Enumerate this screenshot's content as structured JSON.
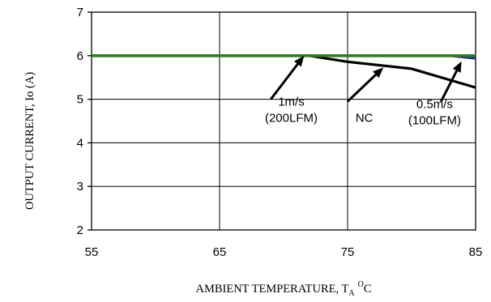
{
  "chart_data": {
    "type": "line",
    "title": "",
    "xlabel": "AMBIENT TEMPERATURE, T",
    "xlabel_sub": "A",
    "xlabel_sup": "O",
    "xlabel_tail": "C",
    "ylabel": "OUTPUT CURRENT, Io  (A)",
    "xlim": [
      55,
      85
    ],
    "ylim": [
      2,
      7
    ],
    "xticks": [
      55,
      65,
      75,
      85
    ],
    "yticks": [
      2,
      3,
      4,
      5,
      6,
      7
    ],
    "grid": true,
    "series": [
      {
        "name": "NC",
        "color": "#000000",
        "x": [
          55,
          72,
          75,
          80,
          85
        ],
        "y": [
          6,
          6,
          5.86,
          5.7,
          5.27
        ]
      },
      {
        "name": "0.5m/s (100LFM)",
        "color": "#1f2a8c",
        "x": [
          55,
          83,
          85
        ],
        "y": [
          6,
          6,
          5.94
        ]
      },
      {
        "name": "1m/s (200LFM)",
        "color": "#2e7d1f",
        "x": [
          55,
          85
        ],
        "y": [
          6,
          6
        ]
      }
    ],
    "annotations": [
      {
        "lines": [
          "1m/s",
          "(200LFM)"
        ],
        "text_x": 70.6,
        "text_y": 4.85,
        "arrow_from": [
          69.0,
          5.0
        ],
        "arrow_to": [
          71.6,
          6.0
        ]
      },
      {
        "lines": [
          "NC"
        ],
        "text_x": 76.3,
        "text_y": 4.48,
        "arrow_from": [
          75.0,
          4.95
        ],
        "arrow_to": [
          77.8,
          5.73
        ]
      },
      {
        "lines": [
          "0.5m/s",
          "(100LFM)"
        ],
        "text_x": 81.8,
        "text_y": 4.8,
        "arrow_from": [
          82.3,
          4.95
        ],
        "arrow_to": [
          83.9,
          5.87
        ]
      }
    ]
  }
}
